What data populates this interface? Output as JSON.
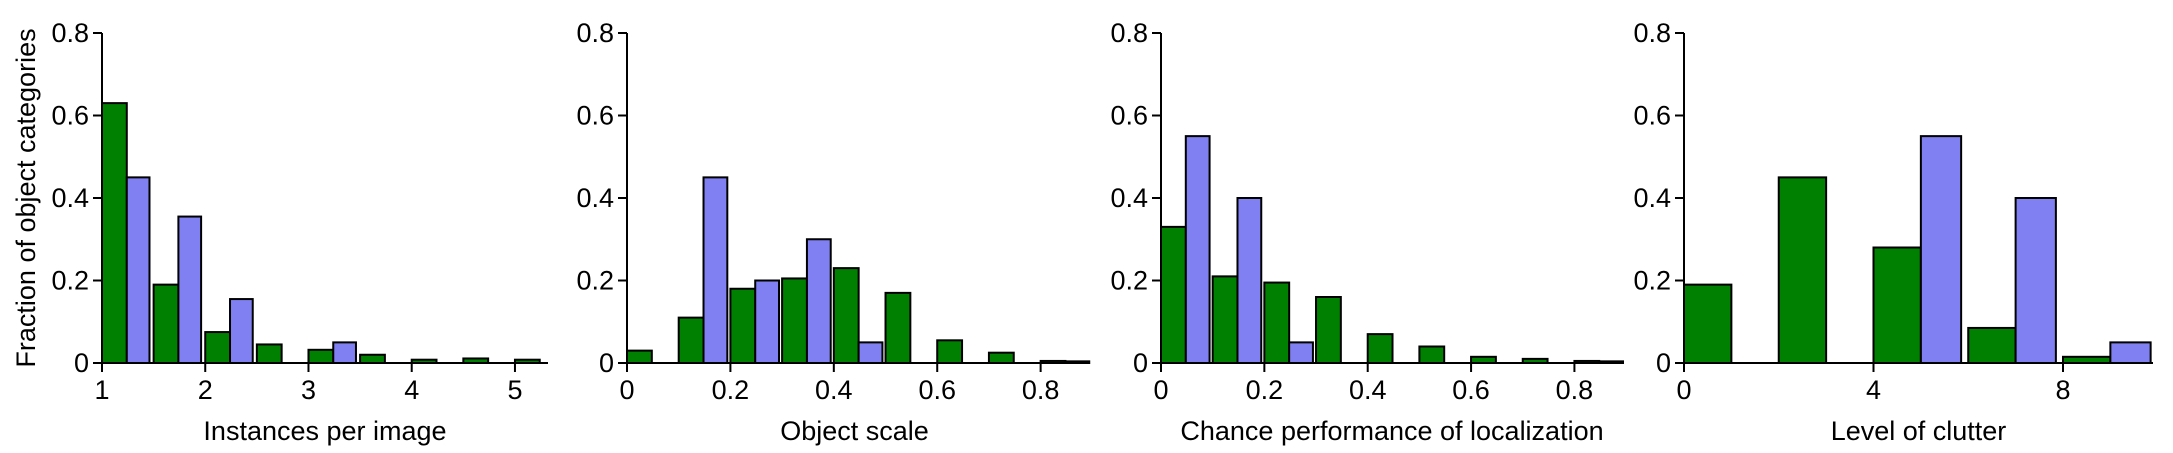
{
  "figure": {
    "type": "histogram-grid",
    "background": "#ffffff",
    "axis_color": "#000000",
    "bar_edge_color": "#000000",
    "series_colors": {
      "green": "#008000",
      "blue": "#8080f2"
    },
    "ylabel": "Fraction of object categories",
    "ylim": [
      0,
      0.8
    ],
    "yticks": [
      0,
      0.2,
      0.4,
      0.6,
      0.8
    ],
    "ytick_labels": [
      "0",
      "0.2",
      "0.4",
      "0.6",
      "0.8"
    ]
  },
  "chart_data": [
    {
      "type": "bar",
      "xlabel": "Instances per image",
      "ylabel": "Fraction of object categories",
      "xlim": [
        1,
        5.32
      ],
      "ylim": [
        0,
        0.8
      ],
      "grid": false,
      "xticks": [
        1,
        2,
        3,
        4,
        5
      ],
      "xtick_labels": [
        "1",
        "2",
        "3",
        "4",
        "5"
      ],
      "bins": [
        1,
        1.5,
        2,
        2.5,
        3,
        3.5,
        4,
        4.5,
        5
      ],
      "green_bar_width": 0.24,
      "blue_bar_width": 0.22,
      "series": [
        {
          "name": "green",
          "values": [
            0.63,
            0.19,
            0.075,
            0.045,
            0.032,
            0.02,
            0.008,
            0.011,
            0.008
          ]
        },
        {
          "name": "blue",
          "values": [
            0.45,
            0.355,
            0.155,
            0,
            0.05,
            0,
            0,
            0,
            0
          ]
        }
      ]
    },
    {
      "type": "bar",
      "xlabel": "Object scale",
      "xlim": [
        0,
        0.88
      ],
      "ylim": [
        0,
        0.8
      ],
      "grid": false,
      "xticks": [
        0,
        0.2,
        0.4,
        0.6,
        0.8
      ],
      "xtick_labels": [
        "0",
        "0.2",
        "0.4",
        "0.6",
        "0.8"
      ],
      "bins": [
        0,
        0.1,
        0.2,
        0.3,
        0.4,
        0.5,
        0.6,
        0.7,
        0.8
      ],
      "green_bar_width": 0.048,
      "blue_bar_width": 0.046,
      "series": [
        {
          "name": "green",
          "values": [
            0.03,
            0.11,
            0.18,
            0.205,
            0.23,
            0.17,
            0.055,
            0.025,
            0.005
          ]
        },
        {
          "name": "blue",
          "values": [
            0,
            0.45,
            0.2,
            0.3,
            0.05,
            0,
            0,
            0,
            0.004
          ]
        }
      ]
    },
    {
      "type": "bar",
      "xlabel": "Chance performance of localization",
      "xlim": [
        0,
        0.894
      ],
      "ylim": [
        0,
        0.8
      ],
      "grid": false,
      "xticks": [
        0,
        0.2,
        0.4,
        0.6,
        0.8
      ],
      "xtick_labels": [
        "0",
        "0.2",
        "0.4",
        "0.6",
        "0.8"
      ],
      "bins": [
        0,
        0.1,
        0.2,
        0.3,
        0.4,
        0.5,
        0.6,
        0.7,
        0.8
      ],
      "green_bar_width": 0.048,
      "blue_bar_width": 0.046,
      "series": [
        {
          "name": "green",
          "values": [
            0.33,
            0.21,
            0.195,
            0.16,
            0.07,
            0.04,
            0.015,
            0.01,
            0.005
          ]
        },
        {
          "name": "blue",
          "values": [
            0.55,
            0.4,
            0.05,
            0,
            0,
            0,
            0,
            0,
            0.004
          ]
        }
      ]
    },
    {
      "type": "bar",
      "xlabel": "Level of clutter",
      "xlim": [
        0,
        9.9
      ],
      "ylim": [
        0,
        0.8
      ],
      "grid": false,
      "xticks": [
        0,
        4,
        8
      ],
      "xtick_labels": [
        "0",
        "4",
        "8"
      ],
      "bins": [
        0,
        2,
        4,
        6,
        8
      ],
      "green_bar_width": 1.0,
      "blue_bar_width": 0.85,
      "series": [
        {
          "name": "green",
          "values": [
            0.19,
            0.45,
            0.28,
            0.085,
            0.015
          ]
        },
        {
          "name": "blue",
          "values": [
            0,
            0,
            0.55,
            0.4,
            0.05
          ]
        }
      ]
    }
  ]
}
